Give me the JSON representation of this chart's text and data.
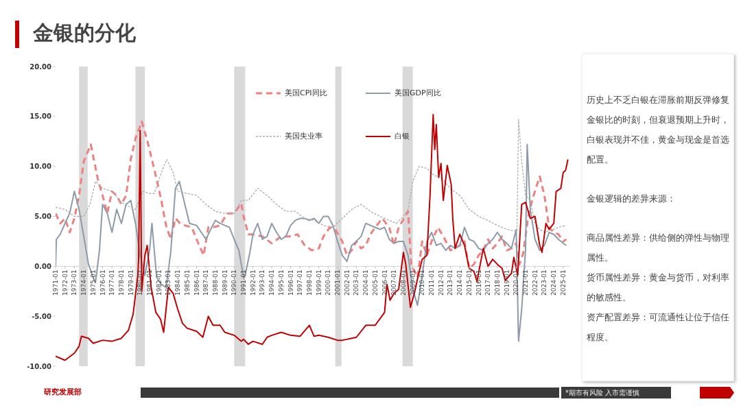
{
  "chart_data": {
    "type": "line",
    "title": "金银的分化",
    "annotations": [
      "历史上不乏白银在滞胀前期反弹修复金银比的时刻，但衰退预期上升时，白银表现并不佳，黄金与现金是首选配置。",
      "金银逻辑的差异来源：",
      "商品属性差异：供给侧的弹性与物理属性。",
      "货币属性差异：黄金与货币，对利率的敏感性。",
      "资产配置差异：可流通性让位于信任程度。",
      "研究发展部",
      "*期市有风险  入市需谨慎"
    ],
    "series": [
      {
        "name": "美国CPI同比",
        "color": "#f08080",
        "line_style": "dashed",
        "x": [
          "1971-01",
          "1971-07",
          "1972-01",
          "1972-07",
          "1973-01",
          "1973-07",
          "1974-01",
          "1974-10",
          "1975-07",
          "1976-01",
          "1976-07",
          "1977-01",
          "1977-07",
          "1978-01",
          "1978-07",
          "1979-01",
          "1979-07",
          "1980-03",
          "1980-10",
          "1981-04",
          "1981-10",
          "1982-04",
          "1982-10",
          "1983-04",
          "1983-10",
          "1984-04",
          "1984-10",
          "1985-07",
          "1986-01",
          "1986-10",
          "1987-04",
          "1987-10",
          "1988-07",
          "1989-04",
          "1990-01",
          "1990-10",
          "1991-01",
          "1991-07",
          "1992-01",
          "1993-01",
          "1994-01",
          "1995-01",
          "1996-01",
          "1996-10",
          "1997-07",
          "1998-04",
          "1999-01",
          "1999-07",
          "2000-03",
          "2000-10",
          "2001-07",
          "2002-01",
          "2002-07",
          "2003-01",
          "2003-07",
          "2004-01",
          "2004-07",
          "2005-01",
          "2005-10",
          "2006-07",
          "2007-01",
          "2007-07",
          "2008-07",
          "2008-11",
          "2009-07",
          "2010-01",
          "2010-07",
          "2011-01",
          "2011-09",
          "2012-04",
          "2013-01",
          "2013-07",
          "2014-01",
          "2014-07",
          "2015-01",
          "2015-07",
          "2016-01",
          "2016-07",
          "2017-01",
          "2017-07",
          "2018-01",
          "2018-07",
          "2019-01",
          "2019-07",
          "2020-01",
          "2020-05",
          "2020-10",
          "2021-04",
          "2021-10",
          "2022-07",
          "2023-01",
          "2023-07",
          "2024-01",
          "2024-07",
          "2025-01",
          "2025-05"
        ],
        "values": [
          5.3,
          4.3,
          4.8,
          3.4,
          4.8,
          7.1,
          10.5,
          12.2,
          8.7,
          7.1,
          5.3,
          7.5,
          7.1,
          6.2,
          7.1,
          10.7,
          12.8,
          14.5,
          12.6,
          10.7,
          8.7,
          6.6,
          4.1,
          2.7,
          4.8,
          4.3,
          4.1,
          3.9,
          2.7,
          1.1,
          3.9,
          3.9,
          4.1,
          5.3,
          5.3,
          6.3,
          5.0,
          3.2,
          3.2,
          3.0,
          2.3,
          3.0,
          3.0,
          3.2,
          2.1,
          1.6,
          1.8,
          3.0,
          3.9,
          3.7,
          2.5,
          1.1,
          1.6,
          2.5,
          1.8,
          2.1,
          3.2,
          3.9,
          4.8,
          3.9,
          2.1,
          3.9,
          5.5,
          0.2,
          -1.1,
          2.5,
          1.1,
          2.5,
          3.9,
          3.0,
          1.6,
          1.8,
          2.1,
          2.5,
          -0.2,
          0.2,
          1.1,
          1.6,
          2.7,
          1.8,
          2.3,
          3.0,
          1.6,
          1.8,
          2.3,
          0.2,
          1.3,
          4.8,
          6.8,
          9.0,
          7.1,
          3.9,
          3.4,
          3.2,
          2.5,
          2.7
        ]
      },
      {
        "name": "美国GDP同比",
        "color": "#8c9aab",
        "line_style": "solid",
        "x": [
          "1971-01",
          "1971-02",
          "1971-07",
          "1972-01",
          "1972-07",
          "1973-01",
          "1973-07",
          "1974-01",
          "1974-07",
          "1975-01",
          "1975-04",
          "1975-09",
          "1976-01",
          "1976-07",
          "1977-01",
          "1977-07",
          "1978-01",
          "1978-07",
          "1979-01",
          "1979-07",
          "1980-01",
          "1980-07",
          "1981-01",
          "1981-04",
          "1981-10",
          "1982-04",
          "1982-10",
          "1983-04",
          "1983-10",
          "1984-03",
          "1984-10",
          "1985-04",
          "1986-01",
          "1986-07",
          "1987-01",
          "1987-07",
          "1988-01",
          "1988-07",
          "1989-01",
          "1989-07",
          "1990-01",
          "1990-07",
          "1991-01",
          "1991-03",
          "1991-09",
          "1992-01",
          "1992-07",
          "1993-01",
          "1993-07",
          "1994-01",
          "1994-07",
          "1995-01",
          "1995-07",
          "1996-01",
          "1996-07",
          "1997-01",
          "1997-07",
          "1998-01",
          "1998-07",
          "1999-01",
          "1999-07",
          "2000-01",
          "2000-07",
          "2001-01",
          "2001-07",
          "2002-01",
          "2002-07",
          "2003-01",
          "2003-07",
          "2004-01",
          "2004-07",
          "2005-01",
          "2005-07",
          "2006-01",
          "2006-07",
          "2007-01",
          "2007-07",
          "2008-01",
          "2008-07",
          "2009-01",
          "2009-07",
          "2010-01",
          "2010-07",
          "2011-01",
          "2011-07",
          "2012-01",
          "2012-07",
          "2013-01",
          "2013-07",
          "2014-01",
          "2014-07",
          "2015-01",
          "2015-07",
          "2016-01",
          "2016-07",
          "2017-01",
          "2017-07",
          "2018-01",
          "2018-07",
          "2019-01",
          "2019-07",
          "2020-01",
          "2020-04",
          "2020-08",
          "2021-01",
          "2021-03",
          "2021-07",
          "2022-01",
          "2022-07",
          "2023-01",
          "2023-07",
          "2024-01",
          "2024-07",
          "2025-01",
          "2025-05"
        ],
        "values": [
          0,
          2.7,
          3.2,
          4.3,
          5.3,
          7.5,
          5.7,
          3.0,
          0.2,
          -1.1,
          -1.6,
          1.6,
          6.2,
          5.3,
          3.4,
          5.7,
          4.3,
          6.2,
          6.6,
          4.3,
          1.1,
          -0.9,
          1.6,
          4.3,
          -1.1,
          -1.8,
          -2.1,
          1.4,
          7.8,
          8.5,
          6.2,
          4.3,
          4.1,
          3.4,
          2.7,
          3.7,
          4.6,
          4.3,
          4.1,
          3.9,
          2.7,
          1.6,
          -1.1,
          -0.9,
          1.4,
          3.2,
          4.3,
          2.7,
          3.0,
          4.3,
          3.4,
          2.7,
          3.0,
          4.1,
          4.6,
          4.8,
          4.8,
          4.6,
          4.8,
          4.3,
          5.0,
          5.0,
          4.1,
          2.5,
          1.1,
          0.5,
          2.1,
          2.5,
          3.0,
          4.3,
          4.1,
          3.9,
          3.7,
          3.9,
          2.7,
          2.3,
          2.5,
          2.5,
          1.1,
          -2.3,
          -3.9,
          -0.9,
          2.5,
          3.4,
          2.1,
          2.3,
          1.6,
          2.1,
          1.8,
          2.1,
          3.9,
          2.7,
          2.5,
          1.8,
          1.6,
          2.3,
          2.7,
          3.4,
          2.7,
          2.3,
          1.8,
          3.7,
          -7.5,
          -4.3,
          1.8,
          12.2,
          5.7,
          2.7,
          1.6,
          2.1,
          3.4,
          3.2,
          2.7,
          2.3,
          2.1
        ]
      },
      {
        "name": "美国失业率",
        "color": "#aaaaaa",
        "line_style": "dotted",
        "x": [
          "1971-01",
          "1972-01",
          "1973-01",
          "1974-01",
          "1974-09",
          "1975-04",
          "1976-01",
          "1977-01",
          "1978-01",
          "1979-01",
          "1979-07",
          "1980-04",
          "1981-01",
          "1981-07",
          "1982-04",
          "1982-11",
          "1983-07",
          "1984-01",
          "1985-01",
          "1986-01",
          "1987-01",
          "1988-01",
          "1989-01",
          "1990-01",
          "1990-10",
          "1991-07",
          "1992-07",
          "1993-07",
          "1994-07",
          "1995-07",
          "1996-07",
          "1997-07",
          "1998-07",
          "1999-07",
          "2000-07",
          "2001-07",
          "2002-07",
          "2003-07",
          "2004-07",
          "2005-07",
          "2006-07",
          "2007-04",
          "2008-01",
          "2008-07",
          "2009-01",
          "2009-09",
          "2010-07",
          "2011-04",
          "2012-01",
          "2013-01",
          "2014-01",
          "2015-01",
          "2016-01",
          "2017-01",
          "2018-01",
          "2019-01",
          "2020-02",
          "2020-04",
          "2020-08",
          "2021-01",
          "2021-07",
          "2022-01",
          "2022-07",
          "2023-01",
          "2024-01",
          "2024-07",
          "2025-05"
        ],
        "values": [
          5.9,
          5.7,
          5.0,
          5.0,
          6.2,
          8.5,
          7.8,
          7.5,
          6.4,
          5.9,
          5.7,
          7.5,
          7.3,
          7.3,
          9.4,
          10.7,
          9.4,
          7.5,
          7.3,
          7.1,
          6.2,
          5.5,
          5.3,
          5.3,
          6.6,
          6.6,
          7.8,
          7.1,
          6.2,
          5.5,
          5.5,
          4.8,
          4.6,
          4.1,
          3.9,
          4.8,
          5.7,
          6.2,
          5.5,
          5.0,
          4.6,
          4.3,
          5.0,
          5.7,
          8.5,
          10.0,
          9.8,
          9.1,
          8.9,
          7.8,
          7.1,
          5.7,
          5.0,
          4.6,
          4.1,
          3.7,
          3.5,
          14.7,
          10.5,
          7.1,
          6.6,
          4.3,
          3.7,
          3.4,
          3.7,
          3.9,
          4.1
        ]
      },
      {
        "name": "白银",
        "color": "#c00000",
        "line_style": "solid",
        "x": [
          "1971-01",
          "1972-01",
          "1973-01",
          "1973-07",
          "1973-10",
          "1974-07",
          "1975-01",
          "1976-01",
          "1977-01",
          "1978-01",
          "1978-10",
          "1979-04",
          "1979-10",
          "1979-11",
          "1980-01",
          "1980-03",
          "1980-07",
          "1980-10",
          "1981-03",
          "1981-09",
          "1982-03",
          "1982-07",
          "1983-01",
          "1983-07",
          "1984-01",
          "1984-07",
          "1985-01",
          "1986-01",
          "1986-09",
          "1987-04",
          "1987-10",
          "1988-07",
          "1989-01",
          "1990-01",
          "1990-10",
          "1991-01",
          "1991-07",
          "1992-01",
          "1993-01",
          "1993-07",
          "1994-01",
          "1995-01",
          "1996-01",
          "1997-01",
          "1998-01",
          "1998-07",
          "1999-01",
          "2000-01",
          "2001-01",
          "2001-07",
          "2002-07",
          "2003-01",
          "2004-01",
          "2005-01",
          "2006-01",
          "2006-04",
          "2006-08",
          "2007-01",
          "2007-07",
          "2008-01",
          "2008-04",
          "2008-10",
          "2009-03",
          "2009-08",
          "2010-01",
          "2010-07",
          "2010-11",
          "2011-03",
          "2011-05",
          "2011-07",
          "2011-10",
          "2012-01",
          "2012-04",
          "2012-09",
          "2013-02",
          "2013-04",
          "2013-07",
          "2014-01",
          "2014-07",
          "2015-01",
          "2015-07",
          "2015-11",
          "2016-07",
          "2017-01",
          "2017-07",
          "2018-01",
          "2018-07",
          "2018-11",
          "2019-07",
          "2019-10",
          "2020-03",
          "2020-08",
          "2021-01",
          "2021-07",
          "2022-01",
          "2022-07",
          "2022-10",
          "2023-03",
          "2023-07",
          "2024-01",
          "2024-04",
          "2024-10",
          "2025-01",
          "2025-04",
          "2025-07"
        ],
        "values": [
          -9.0,
          -9.4,
          -8.7,
          -8.0,
          -7.0,
          -7.2,
          -7.7,
          -7.4,
          -7.5,
          -7.2,
          -6.4,
          -4.8,
          -0.9,
          0.7,
          13.6,
          -2.5,
          1.1,
          2.1,
          -2.1,
          -4.6,
          -5.3,
          -6.6,
          -2.1,
          -2.7,
          -4.3,
          -5.7,
          -6.2,
          -6.5,
          -7.1,
          -5.0,
          -5.9,
          -5.9,
          -6.6,
          -6.9,
          -7.5,
          -7.3,
          -7.8,
          -7.5,
          -7.8,
          -7.1,
          -6.9,
          -6.6,
          -6.9,
          -7.0,
          -5.9,
          -7.0,
          -6.9,
          -7.1,
          -7.4,
          -7.4,
          -7.2,
          -7.1,
          -5.9,
          -5.9,
          -4.6,
          -1.8,
          -3.4,
          -2.7,
          -2.3,
          1.4,
          0.2,
          -4.1,
          -2.7,
          -0.9,
          0.7,
          1.1,
          7.1,
          15.2,
          11.7,
          14.2,
          8.9,
          10.3,
          6.6,
          10.1,
          8.2,
          4.8,
          1.8,
          3.2,
          2.1,
          -0.2,
          -0.5,
          -1.5,
          1.8,
          0,
          0.7,
          0.2,
          -0.2,
          -1.4,
          -0.7,
          0.9,
          -0.9,
          6.2,
          6.4,
          4.8,
          5.0,
          2.1,
          1.4,
          4.3,
          3.7,
          4.3,
          7.5,
          7.8,
          9.4,
          9.6,
          10.7
        ]
      }
    ],
    "xlim": [
      "1971-01",
      "2025-09"
    ],
    "xticks": [
      {
        "value": "1971-01",
        "label": "1971-01"
      },
      {
        "value": "1972-01",
        "label": "1972-01"
      },
      {
        "value": "1973-01",
        "label": "1973-01"
      },
      {
        "value": "1974-01",
        "label": "1974-01"
      },
      {
        "value": "1975-01",
        "label": "1975-01"
      },
      {
        "value": "1976-01",
        "label": "1976-01"
      },
      {
        "value": "1977-01",
        "label": "1977-01"
      },
      {
        "value": "1978-01",
        "label": "1978-01"
      },
      {
        "value": "1979-01",
        "label": "1979-01"
      },
      {
        "value": "1980-01",
        "label": "1980-01"
      },
      {
        "value": "1981-01",
        "label": "1981-01"
      },
      {
        "value": "1982-01",
        "label": "1982-01"
      },
      {
        "value": "1983-01",
        "label": "1983-01"
      },
      {
        "value": "1984-01",
        "label": "1984-01"
      },
      {
        "value": "1985-01",
        "label": "1985-01"
      },
      {
        "value": "1986-01",
        "label": "1986-01"
      },
      {
        "value": "1987-01",
        "label": "1987-01"
      },
      {
        "value": "1988-01",
        "label": "1988-01"
      },
      {
        "value": "1989-01",
        "label": "1989-01"
      },
      {
        "value": "1990-01",
        "label": "1990-01"
      },
      {
        "value": "1991-01",
        "label": "1991-01"
      },
      {
        "value": "1992-01",
        "label": "1992-01"
      },
      {
        "value": "1993-01",
        "label": "1993-01"
      },
      {
        "value": "1994-01",
        "label": "1994-01"
      },
      {
        "value": "1995-01",
        "label": "1995-01"
      },
      {
        "value": "1996-01",
        "label": "1996-01"
      },
      {
        "value": "1997-01",
        "label": "1997-01"
      },
      {
        "value": "1998-01",
        "label": "1998-01"
      },
      {
        "value": "1999-01",
        "label": "1999-01"
      },
      {
        "value": "2000-01",
        "label": "2000-01"
      },
      {
        "value": "2001-01",
        "label": "2001-01"
      },
      {
        "value": "2002-01",
        "label": "2002-01"
      },
      {
        "value": "2003-01",
        "label": "2003-01"
      },
      {
        "value": "2004-01",
        "label": "2004-01"
      },
      {
        "value": "2005-01",
        "label": "2005-01"
      },
      {
        "value": "2006-01",
        "label": "2006-01"
      },
      {
        "value": "2007-01",
        "label": "2007-01"
      },
      {
        "value": "2008-01",
        "label": "2008-01"
      },
      {
        "value": "2009-01",
        "label": "2009-01"
      },
      {
        "value": "2010-01",
        "label": "2010-01"
      },
      {
        "value": "2011-01",
        "label": "2011-01"
      },
      {
        "value": "2012-01",
        "label": "2012-01"
      },
      {
        "value": "2013-01",
        "label": "2013-01"
      },
      {
        "value": "2014-01",
        "label": "2014-01"
      },
      {
        "value": "2015-01",
        "label": "2015-01"
      },
      {
        "value": "2016-01",
        "label": "2016-01"
      },
      {
        "value": "2017-01",
        "label": "2017-01"
      },
      {
        "value": "2018-01",
        "label": "2018-01"
      },
      {
        "value": "2019-01",
        "label": "2019-01"
      },
      {
        "value": "2020-01",
        "label": "2020-01"
      },
      {
        "value": "2021-01",
        "label": "2021-01"
      },
      {
        "value": "2022-01",
        "label": "2022-01"
      },
      {
        "value": "2023-01",
        "label": "2023-01"
      },
      {
        "value": "2024-01",
        "label": "2024-01"
      },
      {
        "value": "2025-01",
        "label": "2025-01"
      }
    ],
    "ylim": [
      -10,
      20
    ],
    "yticks": [
      {
        "value": -10,
        "label": "-10.00"
      },
      {
        "value": -5,
        "label": "-5.00"
      },
      {
        "value": 0,
        "label": "0.00"
      },
      {
        "value": 5,
        "label": "5.00"
      },
      {
        "value": 10,
        "label": "10.00"
      },
      {
        "value": 15,
        "label": "15.00"
      },
      {
        "value": 20,
        "label": "20.00"
      }
    ],
    "bands": [
      {
        "axis": "x",
        "from": "1973-07",
        "to": "1974-06",
        "color": "#d9d9d9"
      },
      {
        "axis": "x",
        "from": "1979-07",
        "to": "1980-07",
        "color": "#d9d9d9"
      },
      {
        "axis": "x",
        "from": "1990-01",
        "to": "1991-03",
        "color": "#d9d9d9"
      },
      {
        "axis": "x",
        "from": "2000-10",
        "to": "2001-06",
        "color": "#d9d9d9"
      },
      {
        "axis": "x",
        "from": "2007-12",
        "to": "2009-01",
        "color": "#d9d9d9"
      }
    ],
    "legend": "top",
    "marker": "none"
  }
}
